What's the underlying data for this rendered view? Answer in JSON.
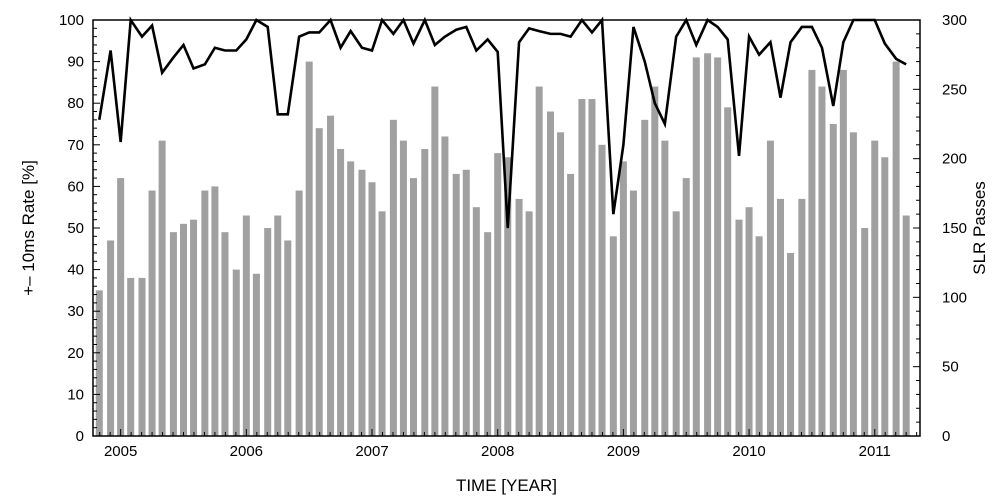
{
  "chart_data": {
    "type": "bar+line",
    "title": "",
    "xlabel": "TIME [YEAR]",
    "ylabel_left": "+– 10ms Rate [%]",
    "ylabel_right": "SLR Passes",
    "x_tick_labels": [
      "2005",
      "2006",
      "2007",
      "2008",
      "2009",
      "2010",
      "2011"
    ],
    "x_tick_values": [
      2005,
      2006,
      2007,
      2008,
      2009,
      2010,
      2011
    ],
    "xlim": [
      2004.78,
      2011.36
    ],
    "ylim_left": [
      0,
      100
    ],
    "ylim_right": [
      0,
      300
    ],
    "y_left_ticks": [
      "0",
      "10",
      "20",
      "30",
      "40",
      "50",
      "60",
      "70",
      "80",
      "90",
      "100"
    ],
    "y_right_ticks": [
      "0",
      "50",
      "100",
      "150",
      "200",
      "250",
      "300"
    ],
    "bar_color": "#a0a0a0",
    "line_color": "#000000",
    "x": [
      2004.83,
      2004.92,
      2005.0,
      2005.08,
      2005.17,
      2005.25,
      2005.33,
      2005.42,
      2005.5,
      2005.58,
      2005.67,
      2005.75,
      2005.83,
      2005.92,
      2006.0,
      2006.08,
      2006.17,
      2006.25,
      2006.33,
      2006.42,
      2006.5,
      2006.58,
      2006.67,
      2006.75,
      2006.83,
      2006.92,
      2007.0,
      2007.08,
      2007.17,
      2007.25,
      2007.33,
      2007.42,
      2007.5,
      2007.58,
      2007.67,
      2007.75,
      2007.83,
      2007.92,
      2008.0,
      2008.08,
      2008.17,
      2008.25,
      2008.33,
      2008.42,
      2008.5,
      2008.58,
      2008.67,
      2008.75,
      2008.83,
      2008.92,
      2009.0,
      2009.08,
      2009.17,
      2009.25,
      2009.33,
      2009.42,
      2009.5,
      2009.58,
      2009.67,
      2009.75,
      2009.83,
      2009.92,
      2010.0,
      2010.08,
      2010.17,
      2010.25,
      2010.33,
      2010.42,
      2010.5,
      2010.58,
      2010.67,
      2010.75,
      2010.83,
      2010.92,
      2011.0,
      2011.08,
      2011.17,
      2011.25
    ],
    "series": [
      {
        "kind": "bar",
        "axis": "left",
        "values": [
          35,
          47,
          62,
          38,
          38,
          59,
          71,
          49,
          51,
          52,
          59,
          60,
          49,
          40,
          53,
          39,
          50,
          53,
          47,
          59,
          90,
          74,
          77,
          69,
          66,
          64,
          61,
          54,
          76,
          71,
          62,
          69,
          84,
          72,
          63,
          64,
          55,
          49,
          68,
          67,
          57,
          54,
          84,
          78,
          73,
          63,
          81,
          81,
          70,
          48,
          66,
          59,
          76,
          84,
          71,
          54,
          62,
          91,
          92,
          91,
          79,
          52,
          55,
          48,
          71,
          57,
          44,
          57,
          88,
          84,
          75,
          88,
          73,
          50,
          71,
          67,
          90,
          53
        ]
      },
      {
        "kind": "line",
        "axis": "right",
        "values": [
          228,
          278,
          212,
          300,
          288,
          296,
          262,
          273,
          282,
          265,
          268,
          280,
          278,
          278,
          286,
          300,
          295,
          232,
          232,
          288,
          291,
          291,
          300,
          280,
          292,
          280,
          278,
          300,
          290,
          300,
          283,
          300,
          282,
          288,
          293,
          295,
          278,
          286,
          277,
          150,
          284,
          294,
          292,
          290,
          290,
          288,
          300,
          291,
          300,
          160,
          210,
          295,
          270,
          240,
          225,
          288,
          300,
          282,
          300,
          295,
          286,
          202,
          288,
          275,
          284,
          244,
          284,
          295,
          295,
          280,
          238,
          284,
          300,
          300,
          300,
          283,
          272,
          268
        ]
      }
    ],
    "grid": false,
    "legend": "none"
  }
}
